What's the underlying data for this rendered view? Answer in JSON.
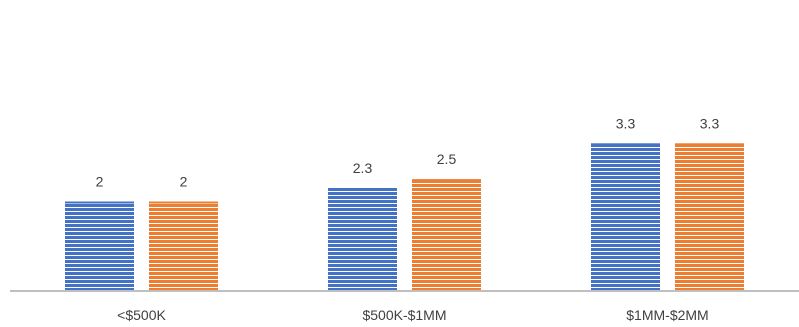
{
  "chart_data": {
    "type": "bar",
    "categories": [
      "<$500K",
      "$500K-$1MM",
      "$1MM-$2MM"
    ],
    "series": [
      {
        "values": [
          2,
          2.3,
          3.3
        ],
        "color": "#4472C4"
      },
      {
        "values": [
          2,
          2.5,
          3.3
        ],
        "color": "#ED7D31"
      }
    ],
    "data_labels": [
      [
        "2",
        "2.3",
        "3.3"
      ],
      [
        "2",
        "2.5",
        "3.3"
      ]
    ],
    "ylim": [
      0,
      6.5
    ],
    "bar_pattern": "horizontal-stripes",
    "grid": false,
    "legend": "none",
    "axis_color": "#bfbfbf"
  }
}
